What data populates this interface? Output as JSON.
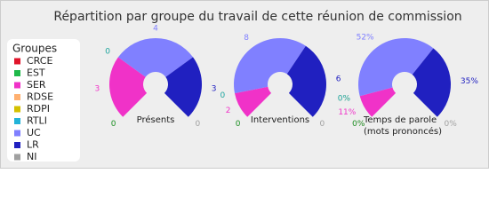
{
  "chart_data": {
    "type": "semi-donut",
    "title": "Répartition par groupe du travail de cette réunion de commission",
    "legend_title": "Groupes",
    "categories": [
      "CRCE",
      "EST",
      "SER",
      "RDSE",
      "RDPI",
      "RTLI",
      "UC",
      "LR",
      "NI"
    ],
    "colors": [
      "#e0142a",
      "#1fb94a",
      "#f032c8",
      "#ffb070",
      "#d4c000",
      "#22b3d8",
      "#8080ff",
      "#2020c0",
      "#a0a0a0"
    ],
    "charts": [
      {
        "label": "Présents",
        "values": [
          0,
          0,
          3,
          0,
          0,
          0,
          4,
          3,
          0
        ]
      },
      {
        "label": "Interventions",
        "values": [
          0,
          0,
          2,
          0,
          0,
          0,
          8,
          6,
          0
        ]
      },
      {
        "label": [
          "Temps de parole",
          "(mots prononcés)"
        ],
        "values": [
          0,
          0,
          11,
          0,
          0,
          0,
          52,
          35,
          0
        ],
        "value_labels": [
          "0%",
          "0%",
          "11%",
          "0%",
          "0%",
          "0%",
          "52%",
          "35%",
          "0%"
        ]
      }
    ]
  }
}
